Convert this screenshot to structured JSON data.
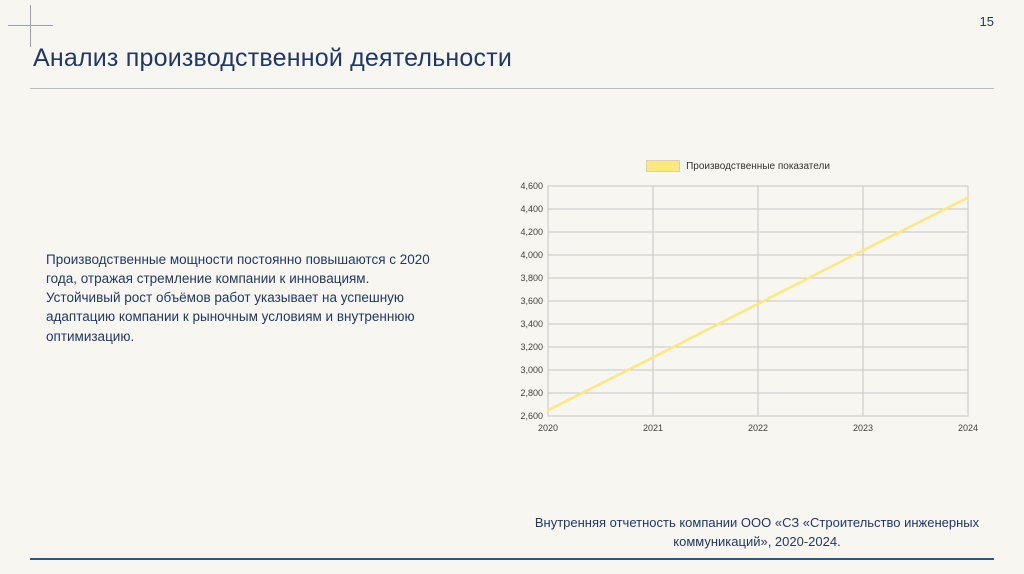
{
  "page": {
    "number": "15",
    "title": "Анализ производственной деятельности",
    "body_text": "Производственные мощности постоянно повышаются с 2020 года, отражая стремление компании к инновациям. Устойчивый рост объёмов работ указывает на успешную адаптацию компании к рыночным условиям и внутреннюю оптимизацию.",
    "footer": "Внутренняя отчетность компании ООО «СЗ «Строительство инженерных коммуникаций», 2020-2024."
  },
  "colors": {
    "background": "#f8f6f1",
    "title_text": "#203864",
    "body_text": "#203864",
    "chart_line": "#ffe87c",
    "grid": "#c6c6c6",
    "tick_text": "#404040",
    "footer_line": "#35547e"
  },
  "chart_data": {
    "type": "line",
    "title": "",
    "legend_position": "top",
    "grid": true,
    "legend": [
      {
        "label": "Производственные показатели",
        "color": "#ffe87c"
      }
    ],
    "x": [
      2020,
      2021,
      2022,
      2023,
      2024
    ],
    "xtick_labels": [
      "2020",
      "2021",
      "2022",
      "2023",
      "2024"
    ],
    "series": [
      {
        "name": "Производственные показатели",
        "values": [
          2650,
          3110,
          3575,
          4040,
          4500
        ]
      }
    ],
    "ylim": [
      2600,
      4600
    ],
    "ytick_step": 200,
    "ytick_labels": [
      "2,600",
      "2,800",
      "3,000",
      "3,200",
      "3,400",
      "3,600",
      "3,800",
      "4,000",
      "4,200",
      "4,400",
      "4,600"
    ]
  }
}
